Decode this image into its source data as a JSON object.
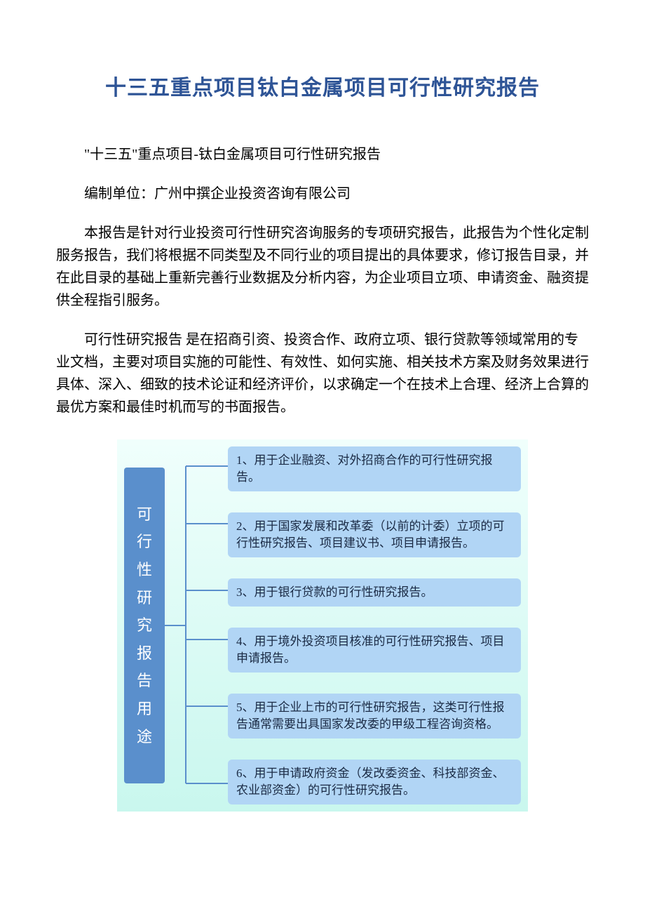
{
  "title": "十三五重点项目钛白金属项目可行性研究报告",
  "paragraphs": {
    "p1": "\"十三五\"重点项目-钛白金属项目可行性研究报告",
    "p2": "编制单位：广州中撰企业投资咨询有限公司",
    "p3": "本报告是针对行业投资可行性研究咨询服务的专项研究报告，此报告为个性化定制服务报告，我们将根据不同类型及不同行业的项目提出的具体要求，修订报告目录，并在此目录的基础上重新完善行业数据及分析内容，为企业项目立项、申请资金、融资提供全程指引服务。",
    "p4": "可行性研究报告 是在招商引资、投资合作、政府立项、银行贷款等领域常用的专业文档，主要对项目实施的可能性、有效性、如何实施、相关技术方案及财务效果进行具体、深入、细致的技术论证和经济评价，以求确定一个在技术上合理、经济上合算的最优方案和最佳时机而写的书面报告。"
  },
  "diagram": {
    "left_label_chars": [
      "可",
      "行",
      "性",
      "研",
      "究",
      "报",
      "告",
      "用",
      "途"
    ],
    "uses": [
      "1、用于企业融资、对外招商合作的可行性研究报告。",
      "2、用于国家发展和改革委（以前的计委）立项的可行性研究报告、项目建议书、项目申请报告。",
      "3、用于银行贷款的可行性研究报告。",
      "4、用于境外投资项目核准的可行性研究报告、项目申请报告。",
      "5、用于企业上市的可行性研究报告，这类可行性报告通常需要出具国家发改委的甲级工程咨询资格。",
      "6、用于申请政府资金（发改委资金、科技部资金、农业部资金）的可行性研究报告。"
    ],
    "colors": {
      "title_color": "#2e5496",
      "body_text_color": "#000000",
      "diagram_bg_top": "#f0fffc",
      "diagram_bg_bottom": "#c9f7ee",
      "left_label_bg": "#5a8fcc",
      "left_label_text": "#ffffff",
      "box_bg": "#b1d5f5",
      "box_text": "#1a2a44",
      "connector_color": "#5a8fcc"
    }
  }
}
